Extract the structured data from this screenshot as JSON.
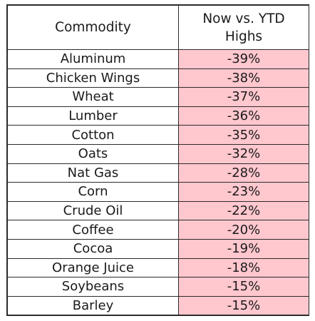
{
  "table": {
    "header": {
      "commodity": "Commodity",
      "change_line1": "Now vs. YTD",
      "change_line2": "Highs"
    },
    "rows": [
      {
        "commodity": "Aluminum",
        "change": "-39%"
      },
      {
        "commodity": "Chicken Wings",
        "change": "-38%"
      },
      {
        "commodity": "Wheat",
        "change": "-37%"
      },
      {
        "commodity": "Lumber",
        "change": "-36%"
      },
      {
        "commodity": "Cotton",
        "change": "-35%"
      },
      {
        "commodity": "Oats",
        "change": "-32%"
      },
      {
        "commodity": "Nat Gas",
        "change": "-28%"
      },
      {
        "commodity": "Corn",
        "change": "-23%"
      },
      {
        "commodity": "Crude Oil",
        "change": "-22%"
      },
      {
        "commodity": "Coffee",
        "change": "-20%"
      },
      {
        "commodity": "Cocoa",
        "change": "-19%"
      },
      {
        "commodity": "Orange Juice",
        "change": "-18%"
      },
      {
        "commodity": "Soybeans",
        "change": "-15%"
      },
      {
        "commodity": "Barley",
        "change": "-15%"
      }
    ],
    "colors": {
      "value_fill": "#ffc7ce",
      "border": "#2b2b2b",
      "text": "#1a1a1a"
    }
  }
}
